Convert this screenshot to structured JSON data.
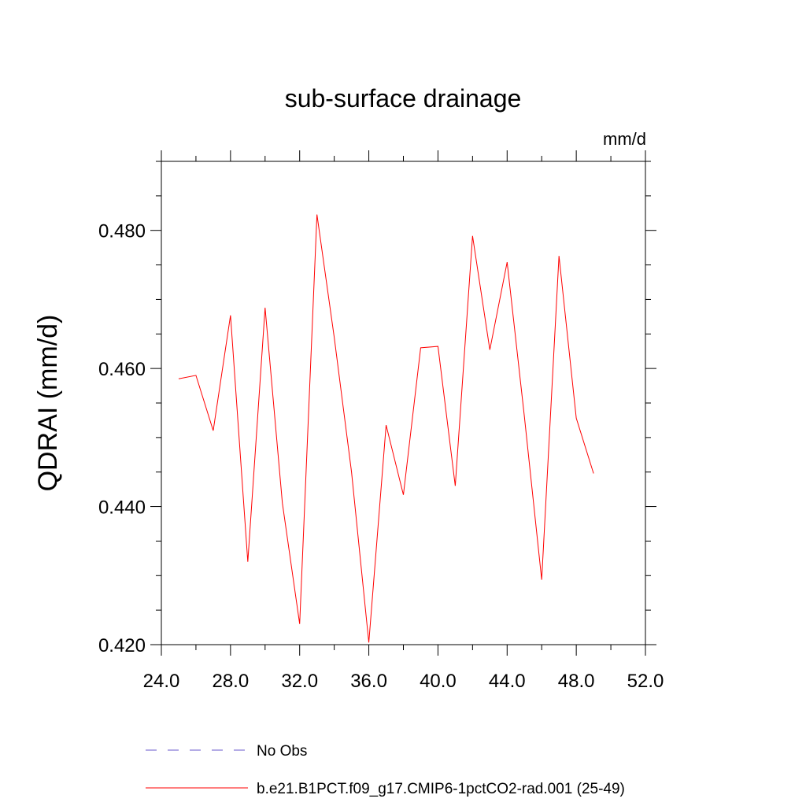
{
  "chart_data": {
    "type": "line",
    "title": "sub-surface drainage",
    "units_label": "mm/d",
    "ylabel": "QDRAI  (mm/d)",
    "xlabel": "",
    "xlim": [
      24.0,
      52.0
    ],
    "ylim": [
      0.42,
      0.49
    ],
    "x_ticks": [
      24.0,
      28.0,
      32.0,
      36.0,
      40.0,
      44.0,
      48.0,
      52.0
    ],
    "x_tick_labels": [
      "24.0",
      "28.0",
      "32.0",
      "36.0",
      "40.0",
      "44.0",
      "48.0",
      "52.0"
    ],
    "y_ticks": [
      0.42,
      0.44,
      0.46,
      0.48
    ],
    "y_tick_labels": [
      "0.420",
      "0.440",
      "0.460",
      "0.480"
    ],
    "y_minor_step": 0.005,
    "x_minor_step": 2.0,
    "grid": false,
    "legend_position": "bottom",
    "series": [
      {
        "name": "No Obs",
        "color": "#6a5acd",
        "style": "dashed",
        "x": [],
        "values": []
      },
      {
        "name": "b.e21.B1PCT.f09_g17.CMIP6-1pctCO2-rad.001 (25-49)",
        "color": "#ff0000",
        "style": "solid",
        "x": [
          25,
          26,
          27,
          28,
          29,
          30,
          31,
          32,
          33,
          34,
          35,
          36,
          37,
          38,
          39,
          40,
          41,
          42,
          43,
          44,
          45,
          46,
          47,
          48,
          49
        ],
        "values": [
          0.4585,
          0.459,
          0.451,
          0.4677,
          0.432,
          0.4688,
          0.4405,
          0.423,
          0.4823,
          0.4645,
          0.445,
          0.4203,
          0.4518,
          0.4417,
          0.463,
          0.4632,
          0.443,
          0.4792,
          0.4627,
          0.4754,
          0.453,
          0.4294,
          0.4763,
          0.4528,
          0.4448
        ]
      }
    ]
  }
}
